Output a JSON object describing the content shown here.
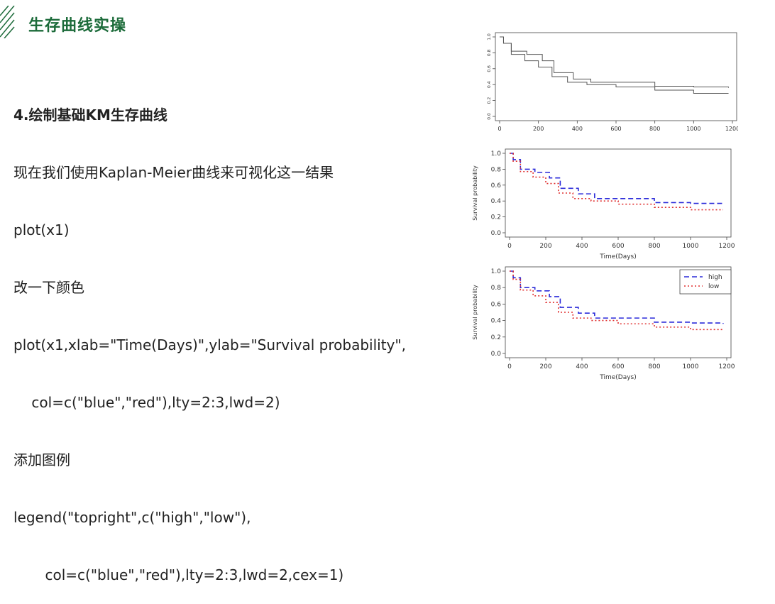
{
  "slide": {
    "title": "生存曲线实操",
    "heading": "4.绘制基础KM生存曲线",
    "lines": [
      "现在我们使用Kaplan-Meier曲线来可视化这一结果",
      "plot(x1)",
      "改一下颜色",
      "plot(x1,xlab=\"Time(Days)\",ylab=\"Survival probability\",",
      "    col=c(\"blue\",\"red\"),lty=2:3,lwd=2)",
      "添加图例",
      "legend(\"topright\",c(\"high\",\"low\"),",
      "       col=c(\"blue\",\"red\"),lty=2:3,lwd=2,cex=1)"
    ],
    "colors": {
      "title": "#1c6b3a",
      "text": "#222222"
    }
  },
  "chart_data": [
    {
      "type": "line",
      "title": "",
      "xlabel": "",
      "ylabel": "",
      "xlim": [
        0,
        1200
      ],
      "ylim": [
        0,
        1
      ],
      "x_ticks": [
        "0",
        "200",
        "400",
        "600",
        "800",
        "1000",
        "1200"
      ],
      "y_ticks": [
        "0.0",
        "0.2",
        "0.4",
        "0.6",
        "0.8",
        "1.0"
      ],
      "grid": false,
      "series": [
        {
          "color": "#555555",
          "dash": "",
          "points": [
            [
              0,
              1.0
            ],
            [
              20,
              0.92
            ],
            [
              60,
              0.82
            ],
            [
              140,
              0.78
            ],
            [
              220,
              0.7
            ],
            [
              280,
              0.55
            ],
            [
              380,
              0.47
            ],
            [
              470,
              0.43
            ],
            [
              600,
              0.43
            ],
            [
              800,
              0.38
            ],
            [
              1000,
              0.37
            ],
            [
              1180,
              0.36
            ]
          ]
        },
        {
          "color": "#555555",
          "dash": "",
          "points": [
            [
              0,
              1.0
            ],
            [
              20,
              0.92
            ],
            [
              60,
              0.78
            ],
            [
              130,
              0.7
            ],
            [
              200,
              0.62
            ],
            [
              270,
              0.5
            ],
            [
              350,
              0.43
            ],
            [
              450,
              0.4
            ],
            [
              600,
              0.37
            ],
            [
              800,
              0.33
            ],
            [
              1000,
              0.29
            ],
            [
              1180,
              0.29
            ]
          ]
        }
      ]
    },
    {
      "type": "line",
      "title": "",
      "xlabel": "Time(Days)",
      "ylabel": "Survival probability",
      "xlim": [
        0,
        1200
      ],
      "ylim": [
        0,
        1
      ],
      "x_ticks": [
        "0",
        "200",
        "400",
        "600",
        "800",
        "1000",
        "1200"
      ],
      "y_ticks": [
        "0.0",
        "0.2",
        "0.4",
        "0.6",
        "0.8",
        "1.0"
      ],
      "grid": false,
      "series": [
        {
          "color": "#2b2bd9",
          "dash": "7,4",
          "points": [
            [
              0,
              1.0
            ],
            [
              20,
              0.92
            ],
            [
              60,
              0.8
            ],
            [
              140,
              0.76
            ],
            [
              220,
              0.69
            ],
            [
              280,
              0.56
            ],
            [
              380,
              0.49
            ],
            [
              470,
              0.43
            ],
            [
              600,
              0.43
            ],
            [
              800,
              0.38
            ],
            [
              1000,
              0.37
            ],
            [
              1180,
              0.36
            ]
          ]
        },
        {
          "color": "#e03131",
          "dash": "2,3",
          "points": [
            [
              0,
              1.0
            ],
            [
              20,
              0.9
            ],
            [
              60,
              0.77
            ],
            [
              130,
              0.7
            ],
            [
              200,
              0.62
            ],
            [
              270,
              0.5
            ],
            [
              350,
              0.43
            ],
            [
              450,
              0.4
            ],
            [
              600,
              0.36
            ],
            [
              800,
              0.32
            ],
            [
              1000,
              0.29
            ],
            [
              1180,
              0.29
            ]
          ]
        }
      ]
    },
    {
      "type": "line",
      "title": "",
      "xlabel": "Time(Days)",
      "ylabel": "Survival probability",
      "xlim": [
        0,
        1200
      ],
      "ylim": [
        0,
        1
      ],
      "x_ticks": [
        "0",
        "200",
        "400",
        "600",
        "800",
        "1000",
        "1200"
      ],
      "y_ticks": [
        "0.0",
        "0.2",
        "0.4",
        "0.6",
        "0.8",
        "1.0"
      ],
      "grid": false,
      "legend": {
        "position": "top-right",
        "entries": [
          "high",
          "low"
        ]
      },
      "series": [
        {
          "name": "high",
          "color": "#2b2bd9",
          "dash": "7,4",
          "points": [
            [
              0,
              1.0
            ],
            [
              20,
              0.92
            ],
            [
              60,
              0.8
            ],
            [
              140,
              0.76
            ],
            [
              220,
              0.69
            ],
            [
              280,
              0.56
            ],
            [
              380,
              0.49
            ],
            [
              470,
              0.43
            ],
            [
              600,
              0.43
            ],
            [
              800,
              0.38
            ],
            [
              1000,
              0.37
            ],
            [
              1180,
              0.36
            ]
          ]
        },
        {
          "name": "low",
          "color": "#e03131",
          "dash": "2,3",
          "points": [
            [
              0,
              1.0
            ],
            [
              20,
              0.9
            ],
            [
              60,
              0.77
            ],
            [
              130,
              0.7
            ],
            [
              200,
              0.62
            ],
            [
              270,
              0.5
            ],
            [
              350,
              0.43
            ],
            [
              450,
              0.4
            ],
            [
              600,
              0.36
            ],
            [
              800,
              0.32
            ],
            [
              1000,
              0.29
            ],
            [
              1180,
              0.29
            ]
          ]
        }
      ]
    }
  ]
}
